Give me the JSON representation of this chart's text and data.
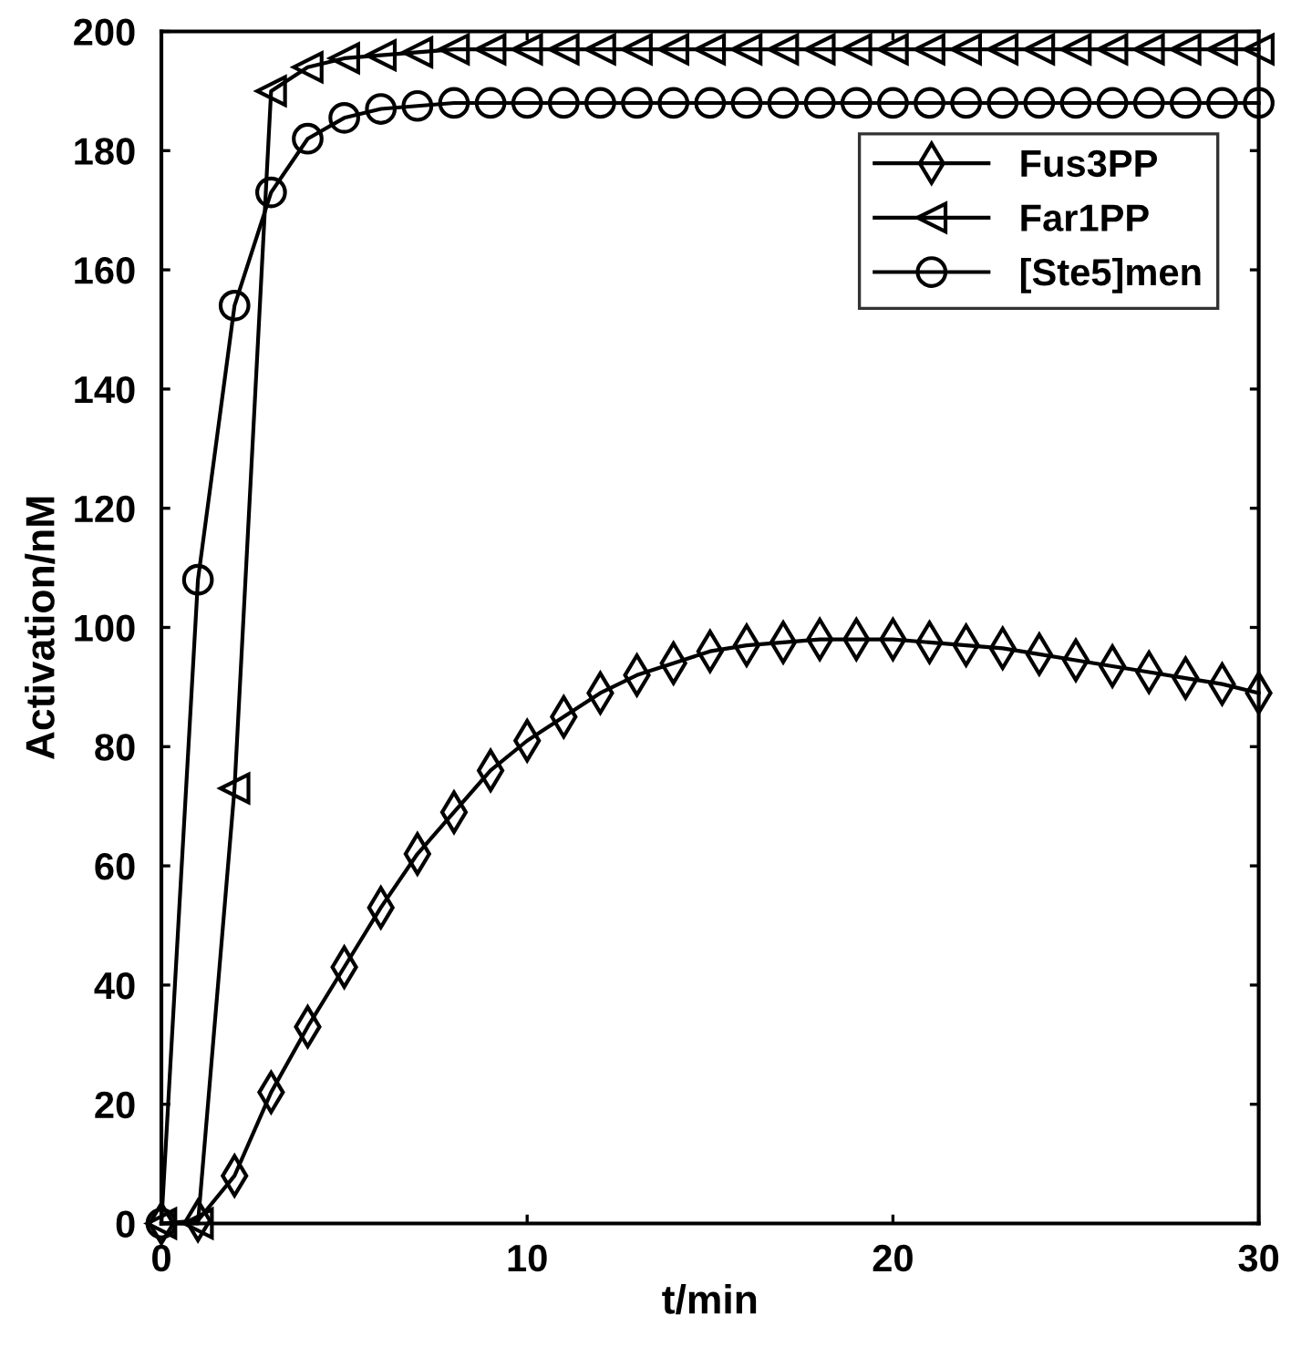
{
  "chart_data": {
    "type": "line",
    "xlabel": "t/min",
    "ylabel": "Activation/nM",
    "x": [
      0,
      1,
      2,
      3,
      4,
      5,
      6,
      7,
      8,
      9,
      10,
      11,
      12,
      13,
      14,
      15,
      16,
      17,
      18,
      19,
      20,
      21,
      22,
      23,
      24,
      25,
      26,
      27,
      28,
      29,
      30
    ],
    "series": [
      {
        "name": "Fus3PP",
        "color": "#000000",
        "marker": "diamond",
        "values": [
          0,
          0.5,
          8,
          22,
          33,
          43,
          53,
          62,
          69,
          76,
          81,
          85,
          89,
          92,
          94,
          96,
          97,
          97.5,
          98,
          98,
          98,
          97.5,
          97,
          96.5,
          95.5,
          94.5,
          93.5,
          92.5,
          91.5,
          90.5,
          89
        ]
      },
      {
        "name": "Far1PP",
        "color": "#000000",
        "marker": "triangle",
        "values": [
          0,
          0,
          73,
          190,
          194,
          195.5,
          196,
          196.5,
          197,
          197,
          197,
          197,
          197,
          197,
          197,
          197,
          197,
          197,
          197,
          197,
          197,
          197,
          197,
          197,
          197,
          197,
          197,
          197,
          197,
          197,
          197
        ]
      },
      {
        "name": "[Ste5]men",
        "color": "#000000",
        "marker": "circle",
        "values": [
          0,
          108,
          154,
          173,
          182,
          185.5,
          187,
          187.5,
          188,
          188,
          188,
          188,
          188,
          188,
          188,
          188,
          188,
          188,
          188,
          188,
          188,
          188,
          188,
          188,
          188,
          188,
          188,
          188,
          188,
          188,
          188
        ]
      }
    ],
    "xlim": [
      0,
      30
    ],
    "xticks": [
      0,
      10,
      20,
      30
    ],
    "ylim": [
      0,
      200
    ],
    "yticks": [
      0,
      20,
      40,
      60,
      80,
      100,
      120,
      140,
      160,
      180,
      200
    ],
    "grid": false,
    "legend": "top right",
    "line_style": "solid"
  }
}
